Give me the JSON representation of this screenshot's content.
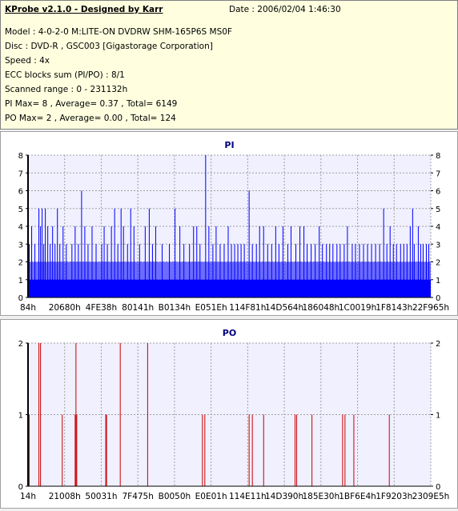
{
  "header": {
    "title": "KProbe v2.1.0 - Designed by Karr",
    "date": "Date : 2006/02/04 1:46:30",
    "lines": [
      "Model : 4-0-2-0 M:LITE-ON DVDRW SHM-165P6S MS0F",
      "Disc : DVD-R , GSC003 [Gigastorage Corporation]",
      "Speed : 4x",
      "ECC blocks sum (PI/PO) : 8/1",
      "Scanned range : 0 - 231132h",
      "PI Max= 8 , Average= 0.37 , Total= 6149",
      "PO Max= 2 , Average= 0.00 , Total= 124"
    ]
  },
  "colors": {
    "pi_bar": "#0000ff",
    "po_bar": "#cc0000",
    "title": "#000080",
    "plot_bg": "#f0f0ff",
    "grid": "#a0a0a0"
  },
  "chart_data": [
    {
      "type": "bar",
      "title": "PI",
      "ylim": [
        0,
        8
      ],
      "yticks": [
        0,
        1,
        2,
        3,
        4,
        5,
        6,
        7,
        8
      ],
      "xlim": [
        0,
        2292
      ],
      "xticks": [
        "84h",
        "20680h",
        "4FE38h",
        "80141h",
        "B0134h",
        "E051Eh",
        "114F81h",
        "14D564h",
        "186048h",
        "1C0019h",
        "1F8143h",
        "22F965h"
      ],
      "grid": true,
      "base_level": 1,
      "background_level": 2,
      "spikes": [
        [
          1,
          3
        ],
        [
          4,
          4
        ],
        [
          8,
          3
        ],
        [
          13,
          5
        ],
        [
          15,
          4
        ],
        [
          17,
          5
        ],
        [
          19,
          3
        ],
        [
          21,
          5
        ],
        [
          24,
          4
        ],
        [
          27,
          3
        ],
        [
          30,
          4
        ],
        [
          33,
          3
        ],
        [
          36,
          5
        ],
        [
          39,
          3
        ],
        [
          43,
          4
        ],
        [
          47,
          3
        ],
        [
          54,
          3
        ],
        [
          58,
          4
        ],
        [
          62,
          3
        ],
        [
          66,
          6
        ],
        [
          70,
          4
        ],
        [
          74,
          3
        ],
        [
          79,
          4
        ],
        [
          84,
          3
        ],
        [
          91,
          3
        ],
        [
          94,
          4
        ],
        [
          98,
          3
        ],
        [
          103,
          4
        ],
        [
          107,
          5
        ],
        [
          111,
          3
        ],
        [
          115,
          5
        ],
        [
          118,
          4
        ],
        [
          123,
          3
        ],
        [
          127,
          5
        ],
        [
          131,
          4
        ],
        [
          138,
          3
        ],
        [
          145,
          4
        ],
        [
          150,
          5
        ],
        [
          154,
          3
        ],
        [
          158,
          4
        ],
        [
          166,
          3
        ],
        [
          175,
          3
        ],
        [
          182,
          5
        ],
        [
          188,
          4
        ],
        [
          193,
          3
        ],
        [
          200,
          3
        ],
        [
          205,
          4
        ],
        [
          209,
          4
        ],
        [
          213,
          3
        ],
        [
          220,
          8
        ],
        [
          224,
          4
        ],
        [
          229,
          3
        ],
        [
          233,
          4
        ],
        [
          238,
          3
        ],
        [
          243,
          3
        ],
        [
          248,
          4
        ],
        [
          252,
          3
        ],
        [
          256,
          3
        ],
        [
          260,
          3
        ],
        [
          264,
          3
        ],
        [
          268,
          3
        ],
        [
          274,
          6
        ],
        [
          278,
          3
        ],
        [
          283,
          3
        ],
        [
          287,
          4
        ],
        [
          292,
          4
        ],
        [
          297,
          3
        ],
        [
          302,
          3
        ],
        [
          307,
          4
        ],
        [
          311,
          3
        ],
        [
          316,
          4
        ],
        [
          322,
          3
        ],
        [
          326,
          4
        ],
        [
          332,
          3
        ],
        [
          337,
          4
        ],
        [
          342,
          4
        ],
        [
          346,
          3
        ],
        [
          351,
          3
        ],
        [
          356,
          3
        ],
        [
          361,
          4
        ],
        [
          365,
          3
        ],
        [
          370,
          3
        ],
        [
          374,
          3
        ],
        [
          378,
          3
        ],
        [
          383,
          3
        ],
        [
          387,
          3
        ],
        [
          392,
          3
        ],
        [
          396,
          4
        ],
        [
          402,
          3
        ],
        [
          406,
          3
        ],
        [
          411,
          3
        ],
        [
          416,
          3
        ],
        [
          421,
          3
        ],
        [
          426,
          3
        ],
        [
          431,
          3
        ],
        [
          436,
          3
        ],
        [
          441,
          5
        ],
        [
          445,
          3
        ],
        [
          449,
          4
        ],
        [
          453,
          3
        ],
        [
          457,
          3
        ],
        [
          462,
          3
        ],
        [
          466,
          3
        ],
        [
          470,
          3
        ],
        [
          474,
          4
        ],
        [
          477,
          5
        ],
        [
          479,
          3
        ],
        [
          484,
          4
        ],
        [
          487,
          3
        ],
        [
          490,
          3
        ],
        [
          494,
          3
        ],
        [
          497,
          3
        ]
      ]
    },
    {
      "type": "bar",
      "title": "PO",
      "ylim": [
        0,
        2
      ],
      "yticks": [
        0,
        1,
        2
      ],
      "xticks": [
        "14h",
        "21008h",
        "50031h",
        "7F475h",
        "B0050h",
        "E0E01h",
        "114E11h",
        "14D390h",
        "185E30h",
        "1BF6E4h",
        "1F9203h",
        "2309E5h"
      ],
      "grid": true,
      "spikes": [
        [
          1,
          1
        ],
        [
          13,
          2
        ],
        [
          15,
          2
        ],
        [
          42,
          1
        ],
        [
          58,
          1
        ],
        [
          59,
          2
        ],
        [
          60,
          1
        ],
        [
          96,
          1
        ],
        [
          97,
          1
        ],
        [
          114,
          2
        ],
        [
          148,
          2
        ],
        [
          216,
          1
        ],
        [
          219,
          1
        ],
        [
          274,
          1
        ],
        [
          278,
          1
        ],
        [
          292,
          1
        ],
        [
          331,
          1
        ],
        [
          333,
          1
        ],
        [
          352,
          1
        ],
        [
          390,
          1
        ],
        [
          393,
          1
        ],
        [
          404,
          1
        ],
        [
          448,
          1
        ]
      ]
    }
  ]
}
